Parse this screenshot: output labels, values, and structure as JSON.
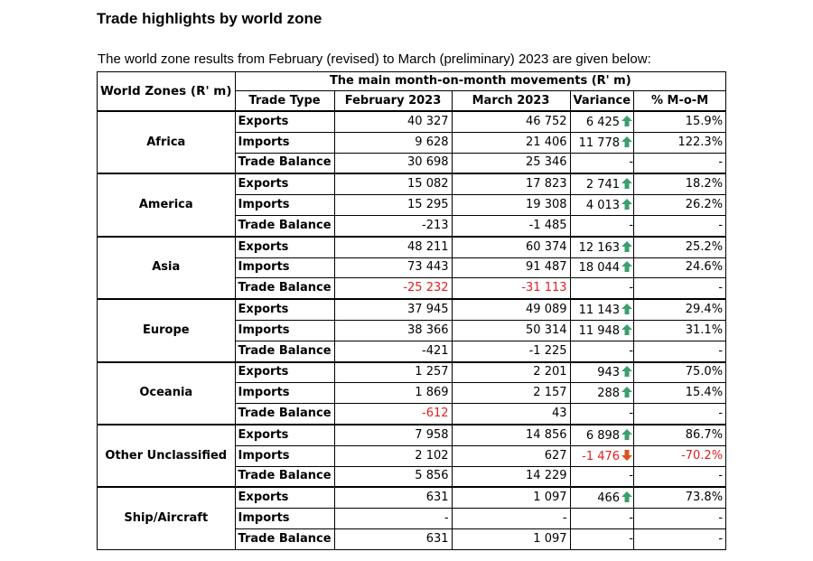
{
  "title": "Trade highlights by world zone",
  "intro": "The world zone results from February (revised) to March (preliminary) 2023 are given below:",
  "colors": {
    "up_arrow": "#3d9e6e",
    "down_arrow": "#d9531e",
    "negative_text": "#e02020"
  },
  "table": {
    "header_zone": "World Zones (R' m)",
    "header_group": "The main month-on-month movements (R' m)",
    "columns": [
      "Trade Type",
      "February 2023",
      "March 2023",
      "Variance",
      "% M-o-M"
    ],
    "zones": [
      {
        "name": "Africa",
        "rows": [
          {
            "type": "Exports",
            "feb": "40 327",
            "mar": "46 752",
            "var": "6 425",
            "dir": "up",
            "pct": "15.9%"
          },
          {
            "type": "Imports",
            "feb": "9 628",
            "mar": "21 406",
            "var": "11 778",
            "dir": "up",
            "pct": "122.3%"
          },
          {
            "type": "Trade Balance",
            "feb": "30 698",
            "mar": "25 346",
            "var": "-",
            "dir": "",
            "pct": "-"
          }
        ]
      },
      {
        "name": "America",
        "rows": [
          {
            "type": "Exports",
            "feb": "15 082",
            "mar": "17 823",
            "var": "2 741",
            "dir": "up",
            "pct": "18.2%"
          },
          {
            "type": "Imports",
            "feb": "15 295",
            "mar": "19 308",
            "var": "4 013",
            "dir": "up",
            "pct": "26.2%"
          },
          {
            "type": "Trade Balance",
            "feb": "-213",
            "mar": "-1 485",
            "var": "-",
            "dir": "",
            "pct": "-"
          }
        ]
      },
      {
        "name": "Asia",
        "rows": [
          {
            "type": "Exports",
            "feb": "48 211",
            "mar": "60 374",
            "var": "12 163",
            "dir": "up",
            "pct": "25.2%"
          },
          {
            "type": "Imports",
            "feb": "73 443",
            "mar": "91 487",
            "var": "18 044",
            "dir": "up",
            "pct": "24.6%"
          },
          {
            "type": "Trade Balance",
            "feb": "-25 232",
            "mar": "-31 113",
            "var": "-",
            "dir": "",
            "pct": "-",
            "feb_red": true,
            "mar_red": true
          }
        ]
      },
      {
        "name": "Europe",
        "rows": [
          {
            "type": "Exports",
            "feb": "37 945",
            "mar": "49 089",
            "var": "11 143",
            "dir": "up",
            "pct": "29.4%"
          },
          {
            "type": "Imports",
            "feb": "38 366",
            "mar": "50 314",
            "var": "11 948",
            "dir": "up",
            "pct": "31.1%"
          },
          {
            "type": "Trade Balance",
            "feb": "-421",
            "mar": "-1 225",
            "var": "-",
            "dir": "",
            "pct": "-"
          }
        ]
      },
      {
        "name": "Oceania",
        "rows": [
          {
            "type": "Exports",
            "feb": "1 257",
            "mar": "2 201",
            "var": "943",
            "dir": "up",
            "pct": "75.0%"
          },
          {
            "type": "Imports",
            "feb": "1 869",
            "mar": "2 157",
            "var": "288",
            "dir": "up",
            "pct": "15.4%"
          },
          {
            "type": "Trade Balance",
            "feb": "-612",
            "mar": "43",
            "var": "-",
            "dir": "",
            "pct": "-",
            "feb_red": true
          }
        ]
      },
      {
        "name": "Other Unclassified",
        "rows": [
          {
            "type": "Exports",
            "feb": "7 958",
            "mar": "14 856",
            "var": "6 898",
            "dir": "up",
            "pct": "86.7%"
          },
          {
            "type": "Imports",
            "feb": "2 102",
            "mar": "627",
            "var": "-1 476",
            "dir": "down",
            "pct": "-70.2%",
            "var_red": true,
            "pct_red": true
          },
          {
            "type": "Trade Balance",
            "feb": "5 856",
            "mar": "14 229",
            "var": "-",
            "dir": "",
            "pct": "-"
          }
        ]
      },
      {
        "name": "Ship/Aircraft",
        "rows": [
          {
            "type": "Exports",
            "feb": "631",
            "mar": "1 097",
            "var": "466",
            "dir": "up",
            "pct": "73.8%"
          },
          {
            "type": "Imports",
            "feb": "-",
            "mar": "-",
            "var": "-",
            "dir": "",
            "pct": "-"
          },
          {
            "type": "Trade Balance",
            "feb": "631",
            "mar": "1 097",
            "var": "-",
            "dir": "",
            "pct": "-"
          }
        ]
      }
    ]
  }
}
